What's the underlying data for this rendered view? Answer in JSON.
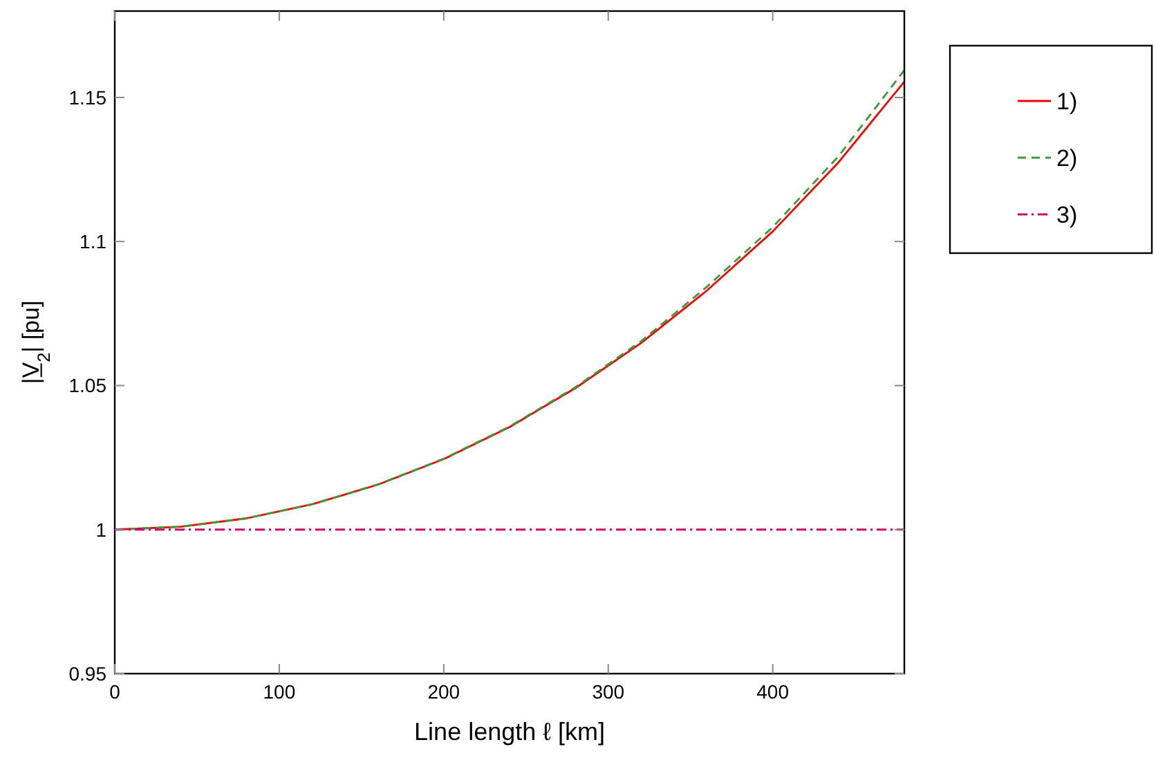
{
  "chart_data": {
    "type": "line",
    "xlabel": "Line length ℓ [km]",
    "ylabel": "|V̲$_{2}$| [pu]",
    "xlim": [
      0,
      480
    ],
    "ylim": [
      0.95,
      1.18
    ],
    "xticks": [
      0,
      100,
      200,
      300,
      400
    ],
    "yticks": [
      0.95,
      1,
      1.05,
      1.1,
      1.15
    ],
    "grid": false,
    "legend": "right",
    "series": [
      {
        "name": "1)",
        "color": "#ff0000",
        "line_style": "solid",
        "x": [
          0,
          40,
          80,
          120,
          160,
          200,
          240,
          280,
          320,
          360,
          400,
          440,
          480
        ],
        "values": [
          1.0,
          1.001,
          1.0039,
          1.0088,
          1.0156,
          1.0245,
          1.0356,
          1.0491,
          1.0648,
          1.083,
          1.1035,
          1.1275,
          1.1555
        ]
      },
      {
        "name": "2)",
        "color": "#3a9a3a",
        "line_style": "dashed",
        "x": [
          0,
          40,
          80,
          120,
          160,
          200,
          240,
          280,
          320,
          360,
          400,
          440,
          480
        ],
        "values": [
          1.0,
          1.001,
          1.0039,
          1.0088,
          1.0157,
          1.0246,
          1.0358,
          1.0494,
          1.0654,
          1.0843,
          1.105,
          1.1296,
          1.1595
        ]
      },
      {
        "name": "3)",
        "color": "#d4006a",
        "line_style": "dashdot",
        "x": [
          0,
          480
        ],
        "values": [
          1.0,
          1.0
        ]
      }
    ]
  }
}
